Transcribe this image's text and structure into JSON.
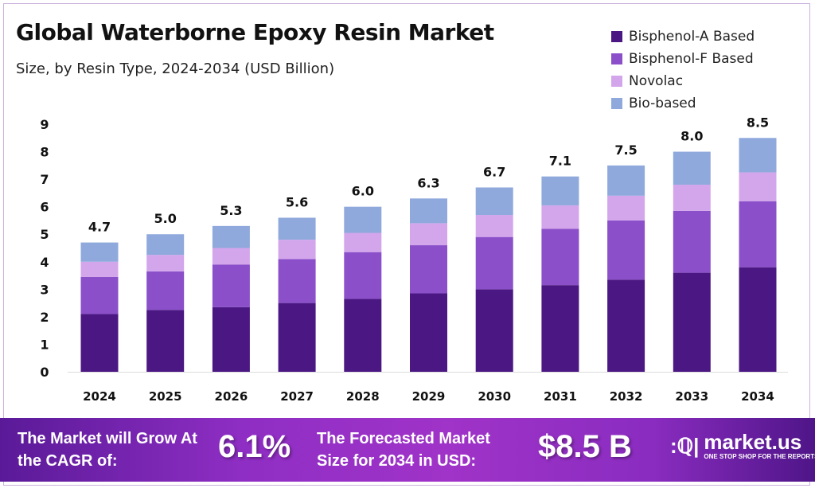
{
  "header": {
    "title": "Global Waterborne Epoxy Resin Market",
    "subtitle": "Size, by Resin Type, 2024-2034 (USD Billion)"
  },
  "colors": {
    "Bisphenol-A Based": "#4b1782",
    "Bisphenol-F Based": "#8a4fc9",
    "Novolac": "#d3a6ec",
    "Bio-based": "#8fa9dc",
    "banner": "#9230c6"
  },
  "chart_data": {
    "type": "bar",
    "stacked": true,
    "categories": [
      "2024",
      "2025",
      "2026",
      "2027",
      "2028",
      "2029",
      "2030",
      "2031",
      "2032",
      "2033",
      "2034"
    ],
    "series": [
      {
        "name": "Bisphenol-A Based",
        "values": [
          2.1,
          2.25,
          2.35,
          2.5,
          2.65,
          2.85,
          3.0,
          3.15,
          3.35,
          3.6,
          3.8
        ]
      },
      {
        "name": "Bisphenol-F Based",
        "values": [
          1.35,
          1.4,
          1.55,
          1.6,
          1.7,
          1.75,
          1.9,
          2.05,
          2.15,
          2.25,
          2.4
        ]
      },
      {
        "name": "Novolac",
        "values": [
          0.55,
          0.6,
          0.6,
          0.7,
          0.7,
          0.8,
          0.8,
          0.85,
          0.9,
          0.95,
          1.05
        ]
      },
      {
        "name": "Bio-based",
        "values": [
          0.7,
          0.75,
          0.8,
          0.8,
          0.95,
          0.9,
          1.0,
          1.05,
          1.1,
          1.2,
          1.25
        ]
      }
    ],
    "totals": [
      "4.7",
      "5.0",
      "5.3",
      "5.6",
      "6.0",
      "6.3",
      "6.7",
      "7.1",
      "7.5",
      "8.0",
      "8.5"
    ],
    "yticks": [
      "0",
      "1",
      "2",
      "3",
      "4",
      "5",
      "6",
      "7",
      "8",
      "9"
    ],
    "ylim": [
      0,
      9
    ],
    "grid": false,
    "legend": "top-right"
  },
  "banner": {
    "cagr_label": "The Market will Grow At the CAGR of:",
    "cagr_value": "6.1%",
    "forecast_label": "The Forecasted Market Size for 2034 in USD:",
    "forecast_value": "$8.5 B",
    "logo_name": "market.us",
    "logo_tagline": "ONE STOP SHOP FOR THE REPORTS"
  }
}
